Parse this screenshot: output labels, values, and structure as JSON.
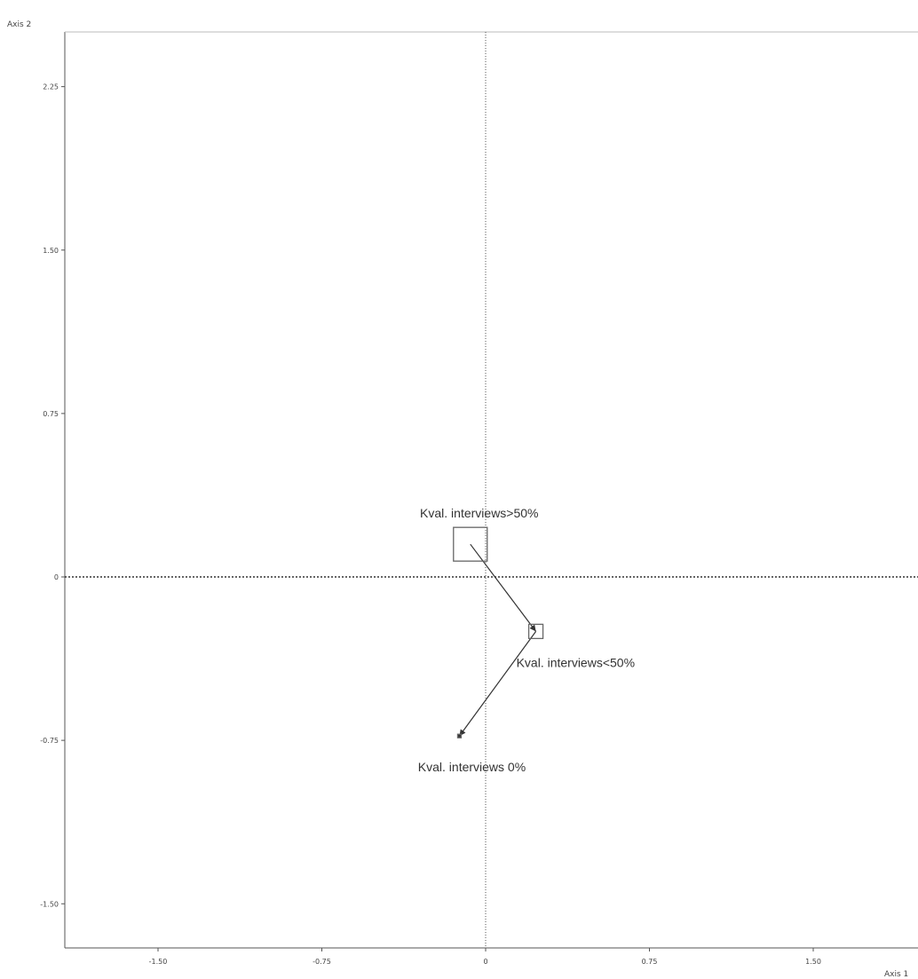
{
  "chart_data": {
    "type": "scatter",
    "title": "",
    "xlabel": "Axis 1",
    "ylabel": "Axis 2",
    "xlim": [
      -1.5,
      2.0
    ],
    "ylim": [
      -1.3,
      2.5
    ],
    "x_ticks": [
      {
        "value": -1.5,
        "label": "-1.50"
      },
      {
        "value": -0.75,
        "label": "-0.75"
      },
      {
        "value": 0,
        "label": "0"
      },
      {
        "value": 0.75,
        "label": "0.75"
      },
      {
        "value": 1.5,
        "label": "1.50"
      }
    ],
    "y_ticks": [
      {
        "value": 2.25,
        "label": "2.25"
      },
      {
        "value": 1.5,
        "label": "1.50"
      },
      {
        "value": 0.75,
        "label": "0.75"
      },
      {
        "value": 0,
        "label": "0"
      },
      {
        "value": -0.75,
        "label": "-0.75"
      },
      {
        "value": -1.5,
        "label": "-1.50"
      }
    ],
    "grid": false,
    "reference_lines": [
      {
        "axis": "x",
        "value": 0
      },
      {
        "axis": "y",
        "value": 0
      }
    ],
    "points": [
      {
        "label": "Kval. interviews>50%",
        "x": -0.07,
        "y": 0.15,
        "marker_size": 3,
        "label_position": "above"
      },
      {
        "label": "Kval. interviews<50%",
        "x": 0.23,
        "y": -0.25,
        "marker_size": 1,
        "label_position": "below-right"
      },
      {
        "label": "Kval. interviews 0%",
        "x": -0.12,
        "y": -0.73,
        "marker_size": 0,
        "label_position": "below"
      }
    ],
    "connections": [
      [
        0,
        1
      ],
      [
        1,
        2
      ]
    ],
    "colors": {
      "axis": "#555555",
      "marker": "#666666",
      "line": "#333333",
      "text": "#333333"
    }
  }
}
